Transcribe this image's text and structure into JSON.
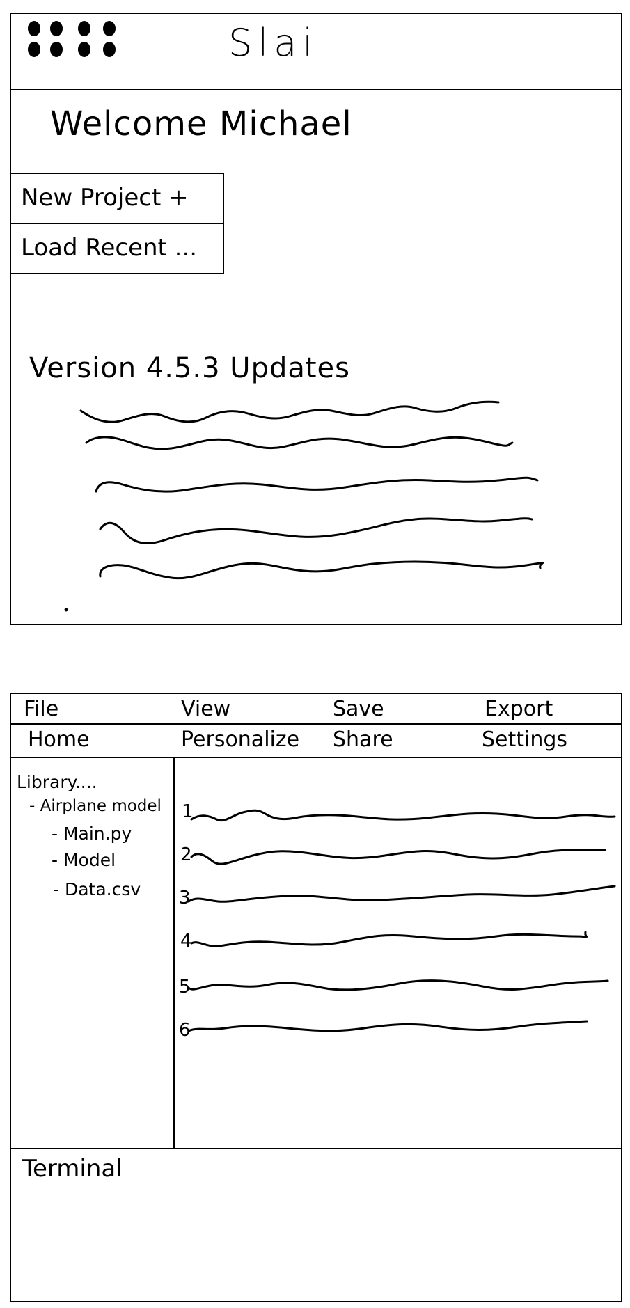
{
  "app": {
    "title": "Slai",
    "welcome": "Welcome Michael",
    "grid_icon": "app-grid-icon"
  },
  "start": {
    "new_project": "New Project +",
    "load_recent": "Load Recent ..."
  },
  "updates": {
    "heading": "Version 4.5.3 Updates"
  },
  "editor": {
    "menu_top": [
      "File",
      "View",
      "Save",
      "Export"
    ],
    "menu_nav": [
      "Home",
      "Personalize",
      "Share",
      "Settings"
    ],
    "library": {
      "label": "Library....",
      "root": "- Airplane model",
      "files": [
        "- Main.py",
        "- Model",
        "- Data.csv"
      ]
    },
    "line_numbers": [
      "1",
      "2",
      "3",
      "4",
      "5",
      "6"
    ],
    "terminal_label": "Terminal"
  }
}
